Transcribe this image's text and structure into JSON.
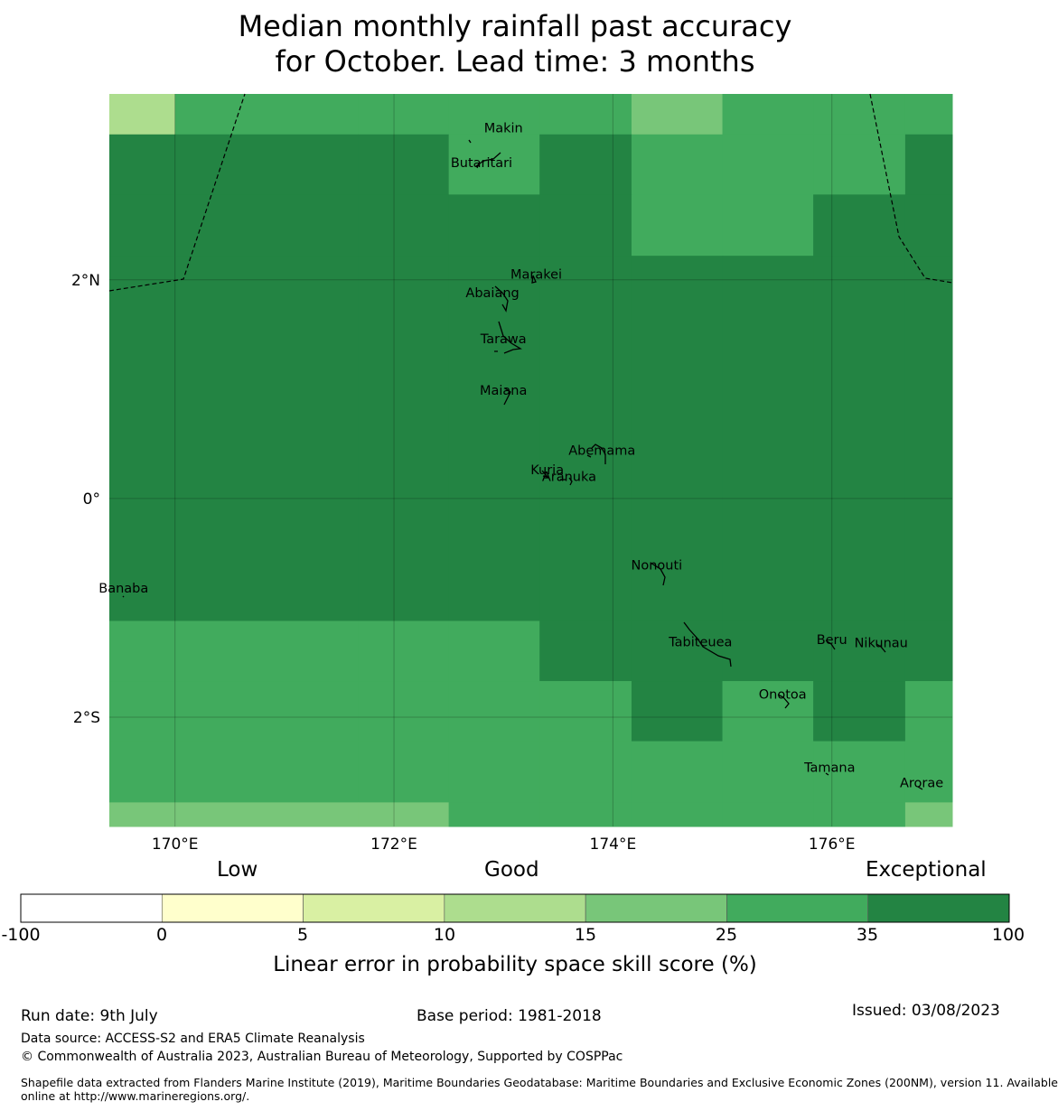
{
  "title": {
    "line1": "Median monthly rainfall past accuracy",
    "line2": "for October. Lead time: 3 months"
  },
  "map": {
    "lon_range": [
      169.4,
      177.1
    ],
    "lat_range": [
      -3.0,
      3.7
    ],
    "x_ticks": [
      "170°E",
      "172°E",
      "174°E",
      "176°E"
    ],
    "y_ticks": [
      "2°N",
      "0°",
      "2°S"
    ],
    "places": [
      {
        "name": "Makin",
        "lon": 173.0,
        "lat": 3.35
      },
      {
        "name": "Butaritari",
        "lon": 172.8,
        "lat": 3.03
      },
      {
        "name": "Marakei",
        "lon": 173.3,
        "lat": 2.01
      },
      {
        "name": "Abaiang",
        "lon": 172.9,
        "lat": 1.84
      },
      {
        "name": "Tarawa",
        "lon": 173.0,
        "lat": 1.42
      },
      {
        "name": "Maiana",
        "lon": 173.0,
        "lat": 0.95
      },
      {
        "name": "Abemama",
        "lon": 173.9,
        "lat": 0.4
      },
      {
        "name": "Kuria",
        "lon": 173.4,
        "lat": 0.22
      },
      {
        "name": "Aranuka",
        "lon": 173.6,
        "lat": 0.16
      },
      {
        "name": "Nonouti",
        "lon": 174.4,
        "lat": -0.65
      },
      {
        "name": "Banaba",
        "lon": 169.53,
        "lat": -0.86
      },
      {
        "name": "Tabiteuea",
        "lon": 174.8,
        "lat": -1.35
      },
      {
        "name": "Beru",
        "lon": 176.0,
        "lat": -1.33
      },
      {
        "name": "Nikunau",
        "lon": 176.45,
        "lat": -1.36
      },
      {
        "name": "Onotoa",
        "lon": 175.55,
        "lat": -1.83
      },
      {
        "name": "Tamana",
        "lon": 175.98,
        "lat": -2.5
      },
      {
        "name": "Arorae",
        "lon": 176.82,
        "lat": -2.64
      }
    ],
    "skill_grid": {
      "lon_edges": [
        169.4,
        170.0,
        171.67,
        172.5,
        173.33,
        174.17,
        175.0,
        175.83,
        176.67,
        177.1
      ],
      "lat_edges": [
        3.7,
        3.33,
        2.78,
        2.22,
        -1.12,
        -1.67,
        -2.22,
        -2.78,
        -3.0
      ],
      "classes": [
        [
          3,
          5,
          5,
          5,
          5,
          4,
          5,
          5,
          5
        ],
        [
          6,
          6,
          6,
          5,
          6,
          5,
          5,
          5,
          6
        ],
        [
          6,
          6,
          6,
          6,
          6,
          5,
          5,
          6,
          6
        ],
        [
          6,
          6,
          6,
          6,
          6,
          6,
          6,
          6,
          6
        ],
        [
          5,
          5,
          5,
          5,
          6,
          6,
          6,
          6,
          6
        ],
        [
          5,
          5,
          5,
          5,
          5,
          6,
          5,
          6,
          5
        ],
        [
          5,
          5,
          5,
          5,
          5,
          5,
          5,
          5,
          5
        ],
        [
          4,
          4,
          4,
          5,
          5,
          5,
          5,
          5,
          4
        ]
      ]
    }
  },
  "colorbar": {
    "categories": [
      "Low",
      "Good",
      "Exceptional"
    ],
    "boundaries": [
      "-100",
      "0",
      "5",
      "10",
      "15",
      "25",
      "35",
      "100"
    ],
    "colors": [
      "#ffffff",
      "#ffffcc",
      "#d9f0a3",
      "#addd8e",
      "#78c679",
      "#41ab5d",
      "#238443"
    ],
    "label": "Linear error in probability space skill score (%)"
  },
  "footer": {
    "run_date": "Run date: 9th July",
    "base_period": "Base period: 1981-2018",
    "issued": "Issued: 03/08/2023",
    "data_source": "Data source: ACCESS-S2 and ERA5 Climate Reanalysis",
    "copyright": "© Commonwealth of Australia 2023, Australian Bureau of Meteorology, Supported by COSPPac",
    "shapefile_line1": "Shapefile data extracted from Flanders Marine Institute (2019), Maritime Boundaries Geodatabase: Maritime Boundaries and Exclusive Economic Zones (200NM), version 11. Available",
    "shapefile_line2": "online at http://www.marineregions.org/."
  }
}
